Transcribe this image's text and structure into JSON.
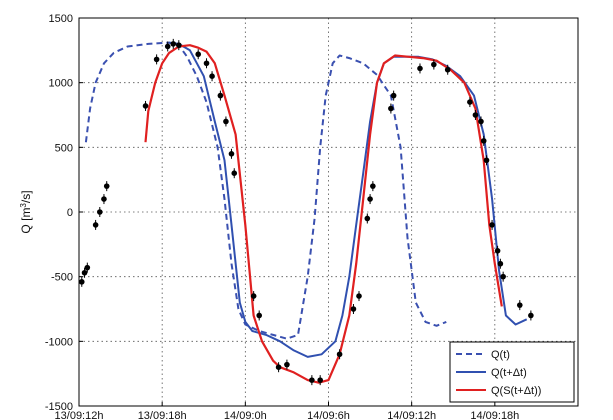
{
  "chart_data": {
    "type": "line",
    "title": "",
    "xlabel": "",
    "ylabel": {
      "prefix": "Q [m",
      "sup": "3",
      "suffix": "/s]"
    },
    "xlim": [
      0,
      36
    ],
    "ylim": [
      -1500,
      1500
    ],
    "x_unit": "hours after 13/09 12h",
    "x_ticks": [
      {
        "value": 0,
        "label": "13/09:12h"
      },
      {
        "value": 6,
        "label": "13/09:18h"
      },
      {
        "value": 12,
        "label": "14/09:0h"
      },
      {
        "value": 18,
        "label": "14/09:6h"
      },
      {
        "value": 24,
        "label": "14/09:12h"
      },
      {
        "value": 30,
        "label": "14/09:18h"
      }
    ],
    "y_ticks": [
      {
        "value": -1500,
        "label": "-1500"
      },
      {
        "value": -1000,
        "label": "-1000"
      },
      {
        "value": -500,
        "label": "-500"
      },
      {
        "value": 0,
        "label": "0"
      },
      {
        "value": 500,
        "label": "500"
      },
      {
        "value": 1000,
        "label": "1000"
      },
      {
        "value": 1500,
        "label": "1500"
      }
    ],
    "grid": true,
    "legend_position": "bottom-right",
    "series": [
      {
        "name": "Q(t)",
        "color": "#3a50b0",
        "style": "dashed",
        "points": [
          [
            0.5,
            540
          ],
          [
            0.8,
            800
          ],
          [
            1.2,
            1000
          ],
          [
            1.8,
            1150
          ],
          [
            2.5,
            1230
          ],
          [
            3.5,
            1280
          ],
          [
            5,
            1300
          ],
          [
            6.5,
            1310
          ],
          [
            7.2,
            1290
          ],
          [
            7.8,
            1200
          ],
          [
            8.5,
            1050
          ],
          [
            9.2,
            850
          ],
          [
            10,
            500
          ],
          [
            10.5,
            100
          ],
          [
            11,
            -400
          ],
          [
            11.5,
            -750
          ],
          [
            12,
            -870
          ],
          [
            13,
            -920
          ],
          [
            14,
            -950
          ],
          [
            15,
            -980
          ],
          [
            15.8,
            -950
          ],
          [
            16.5,
            -500
          ],
          [
            17,
            -50
          ],
          [
            17.4,
            500
          ],
          [
            17.8,
            900
          ],
          [
            18.3,
            1150
          ],
          [
            18.8,
            1210
          ],
          [
            19.5,
            1190
          ],
          [
            20.5,
            1150
          ],
          [
            21.5,
            1060
          ],
          [
            22.5,
            900
          ],
          [
            23.2,
            500
          ],
          [
            23.7,
            -200
          ],
          [
            24.3,
            -700
          ],
          [
            25,
            -850
          ],
          [
            25.8,
            -880
          ],
          [
            26.5,
            -850
          ]
        ]
      },
      {
        "name": "Q(t+Δt)",
        "color": "#3050b0",
        "style": "solid",
        "points": [
          [
            6.5,
            1310
          ],
          [
            7.2,
            1300
          ],
          [
            8,
            1250
          ],
          [
            9,
            1050
          ],
          [
            9.8,
            700
          ],
          [
            10.5,
            400
          ],
          [
            11,
            -100
          ],
          [
            11.6,
            -700
          ],
          [
            12,
            -850
          ],
          [
            12.5,
            -920
          ],
          [
            13.5,
            -950
          ],
          [
            14.5,
            -1000
          ],
          [
            15.5,
            -1070
          ],
          [
            16.5,
            -1120
          ],
          [
            17.5,
            -1100
          ],
          [
            18.5,
            -1000
          ],
          [
            19,
            -800
          ],
          [
            19.5,
            -500
          ],
          [
            20,
            -100
          ],
          [
            20.5,
            300
          ],
          [
            21,
            700
          ],
          [
            21.5,
            1000
          ],
          [
            22,
            1150
          ],
          [
            22.7,
            1200
          ],
          [
            23.5,
            1200
          ],
          [
            24.5,
            1200
          ],
          [
            25.5,
            1180
          ],
          [
            26.5,
            1130
          ],
          [
            27.5,
            1050
          ],
          [
            28.5,
            900
          ],
          [
            29.2,
            600
          ],
          [
            29.8,
            100
          ],
          [
            30.3,
            -450
          ],
          [
            30.8,
            -800
          ],
          [
            31.5,
            -870
          ],
          [
            32.3,
            -830
          ]
        ]
      },
      {
        "name": "Q(S(t+Δt))",
        "color": "#e02020",
        "style": "solid",
        "points": [
          [
            4.8,
            540
          ],
          [
            5,
            780
          ],
          [
            5.5,
            1000
          ],
          [
            6,
            1150
          ],
          [
            6.5,
            1230
          ],
          [
            7.2,
            1280
          ],
          [
            8,
            1290
          ],
          [
            8.6,
            1270
          ],
          [
            9.2,
            1240
          ],
          [
            9.8,
            1150
          ],
          [
            10.5,
            900
          ],
          [
            11.3,
            600
          ],
          [
            12,
            -100
          ],
          [
            12.6,
            -800
          ],
          [
            13.2,
            -1000
          ],
          [
            14,
            -1150
          ],
          [
            14.5,
            -1200
          ],
          [
            15.5,
            -1240
          ],
          [
            16.5,
            -1300
          ],
          [
            17.3,
            -1320
          ],
          [
            18,
            -1300
          ],
          [
            18.8,
            -1100
          ],
          [
            19.5,
            -800
          ],
          [
            20,
            -400
          ],
          [
            20.5,
            100
          ],
          [
            21,
            600
          ],
          [
            21.5,
            1000
          ],
          [
            22,
            1150
          ],
          [
            22.8,
            1210
          ],
          [
            23.8,
            1200
          ],
          [
            24.8,
            1190
          ],
          [
            25.8,
            1170
          ],
          [
            26.8,
            1100
          ],
          [
            27.8,
            1000
          ],
          [
            28.6,
            800
          ],
          [
            29.2,
            400
          ],
          [
            29.6,
            -100
          ],
          [
            30,
            -400
          ],
          [
            30.5,
            -730
          ]
        ]
      },
      {
        "name": "",
        "role": "observations",
        "color": "#000000",
        "style": "markers",
        "points": [
          [
            0.2,
            -540
          ],
          [
            0.4,
            -470
          ],
          [
            0.6,
            -430
          ],
          [
            1.2,
            -100
          ],
          [
            1.5,
            0
          ],
          [
            1.8,
            100
          ],
          [
            2,
            200
          ],
          [
            4.8,
            820
          ],
          [
            5.6,
            1180
          ],
          [
            6.4,
            1280
          ],
          [
            6.8,
            1300
          ],
          [
            7.2,
            1290
          ],
          [
            8.6,
            1220
          ],
          [
            9.2,
            1150
          ],
          [
            9.6,
            1050
          ],
          [
            10.2,
            900
          ],
          [
            10.6,
            700
          ],
          [
            11,
            450
          ],
          [
            11.2,
            300
          ],
          [
            12.6,
            -650
          ],
          [
            13,
            -800
          ],
          [
            14.4,
            -1200
          ],
          [
            15,
            -1180
          ],
          [
            16.8,
            -1300
          ],
          [
            17.4,
            -1300
          ],
          [
            18.8,
            -1100
          ],
          [
            19.8,
            -750
          ],
          [
            20.2,
            -650
          ],
          [
            20.8,
            -50
          ],
          [
            21,
            100
          ],
          [
            21.2,
            200
          ],
          [
            22.5,
            800
          ],
          [
            22.7,
            900
          ],
          [
            24.6,
            1110
          ],
          [
            25.6,
            1140
          ],
          [
            26.6,
            1100
          ],
          [
            28.2,
            850
          ],
          [
            28.6,
            750
          ],
          [
            29,
            700
          ],
          [
            29.2,
            550
          ],
          [
            29.4,
            400
          ],
          [
            29.8,
            -100
          ],
          [
            30.2,
            -300
          ],
          [
            30.4,
            -400
          ],
          [
            31.8,
            -720
          ],
          [
            32.6,
            -800
          ],
          [
            30.6,
            -500
          ]
        ]
      }
    ]
  }
}
